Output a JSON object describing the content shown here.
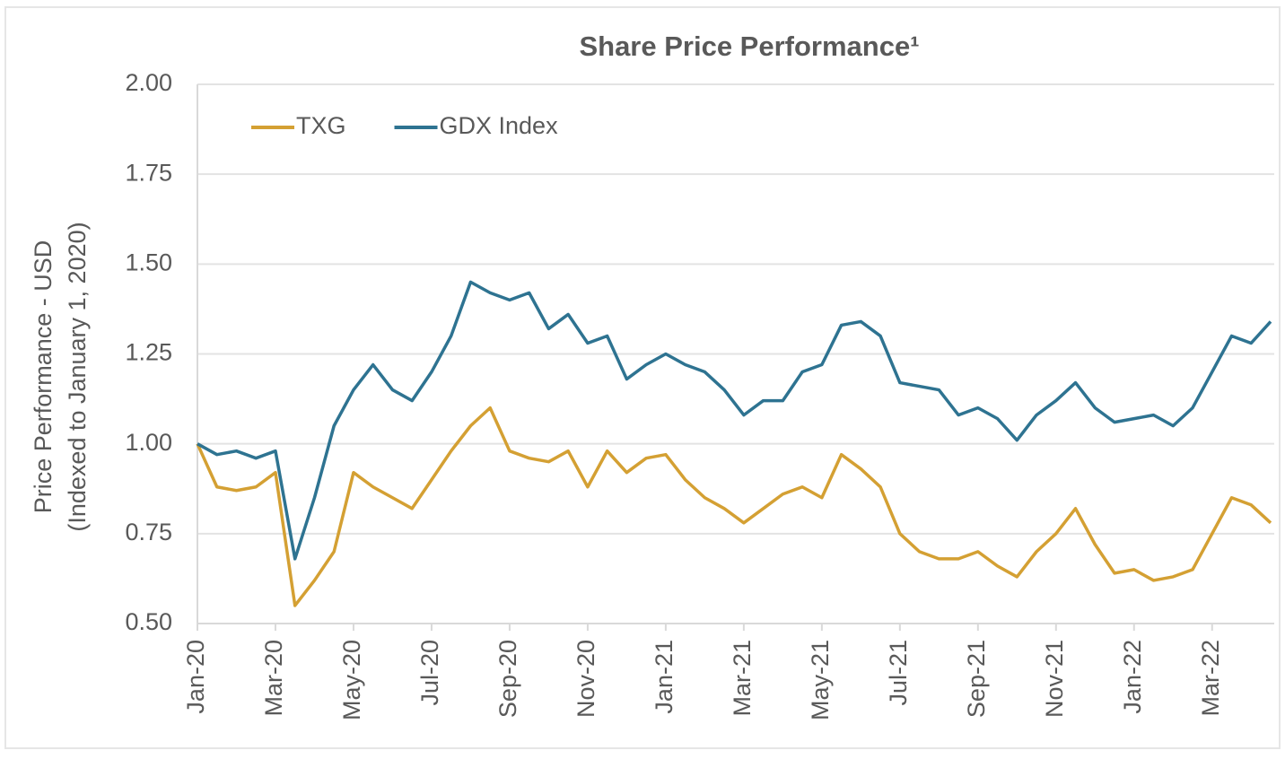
{
  "chart_data": {
    "type": "line",
    "title": "Share Price Performance¹",
    "ylabel": [
      "Price Performance - USD",
      "(Indexed to January 1, 2020)"
    ],
    "categories": [
      "Jan-20",
      null,
      null,
      null,
      "Mar-20",
      null,
      null,
      null,
      "May-20",
      null,
      null,
      null,
      "Jul-20",
      null,
      null,
      null,
      "Sep-20",
      null,
      null,
      null,
      "Nov-20",
      null,
      null,
      null,
      "Jan-21",
      null,
      null,
      null,
      "Mar-21",
      null,
      null,
      null,
      "May-21",
      null,
      null,
      null,
      "Jul-21",
      null,
      null,
      null,
      "Sep-21",
      null,
      null,
      null,
      "Nov-21",
      null,
      null,
      null,
      "Jan-22",
      null,
      null,
      null,
      "Mar-22",
      null,
      null,
      null
    ],
    "series": [
      {
        "name": "TXG",
        "color": "#d4a033",
        "values": [
          1.0,
          0.88,
          0.87,
          0.88,
          0.92,
          0.55,
          0.62,
          0.7,
          0.92,
          0.88,
          0.85,
          0.82,
          0.9,
          0.98,
          1.05,
          1.1,
          0.98,
          0.96,
          0.95,
          0.98,
          0.88,
          0.98,
          0.92,
          0.96,
          0.97,
          0.9,
          0.85,
          0.82,
          0.78,
          0.82,
          0.86,
          0.88,
          0.85,
          0.97,
          0.93,
          0.88,
          0.75,
          0.7,
          0.68,
          0.68,
          0.7,
          0.66,
          0.63,
          0.7,
          0.75,
          0.82,
          0.72,
          0.64,
          0.65,
          0.62,
          0.63,
          0.65,
          0.75,
          0.85,
          0.83,
          0.78
        ]
      },
      {
        "name": "GDX Index",
        "color": "#2e7391",
        "values": [
          1.0,
          0.97,
          0.98,
          0.96,
          0.98,
          0.68,
          0.85,
          1.05,
          1.15,
          1.22,
          1.15,
          1.12,
          1.2,
          1.3,
          1.45,
          1.42,
          1.4,
          1.42,
          1.32,
          1.36,
          1.28,
          1.3,
          1.18,
          1.22,
          1.25,
          1.22,
          1.2,
          1.15,
          1.08,
          1.12,
          1.12,
          1.2,
          1.22,
          1.33,
          1.34,
          1.3,
          1.17,
          1.16,
          1.15,
          1.08,
          1.1,
          1.07,
          1.01,
          1.08,
          1.12,
          1.17,
          1.1,
          1.06,
          1.07,
          1.08,
          1.05,
          1.1,
          1.2,
          1.3,
          1.28,
          1.34
        ]
      }
    ],
    "ylim": [
      0.5,
      2.0
    ],
    "yticks": [
      {
        "value": 0.5,
        "label": "0.50"
      },
      {
        "value": 0.75,
        "label": "0.75"
      },
      {
        "value": 1.0,
        "label": "1.00"
      },
      {
        "value": 1.25,
        "label": "1.25"
      },
      {
        "value": 1.5,
        "label": "1.50"
      },
      {
        "value": 1.75,
        "label": "1.75"
      },
      {
        "value": 2.0,
        "label": "2.00"
      }
    ],
    "grid": true,
    "legend": "top-left"
  }
}
